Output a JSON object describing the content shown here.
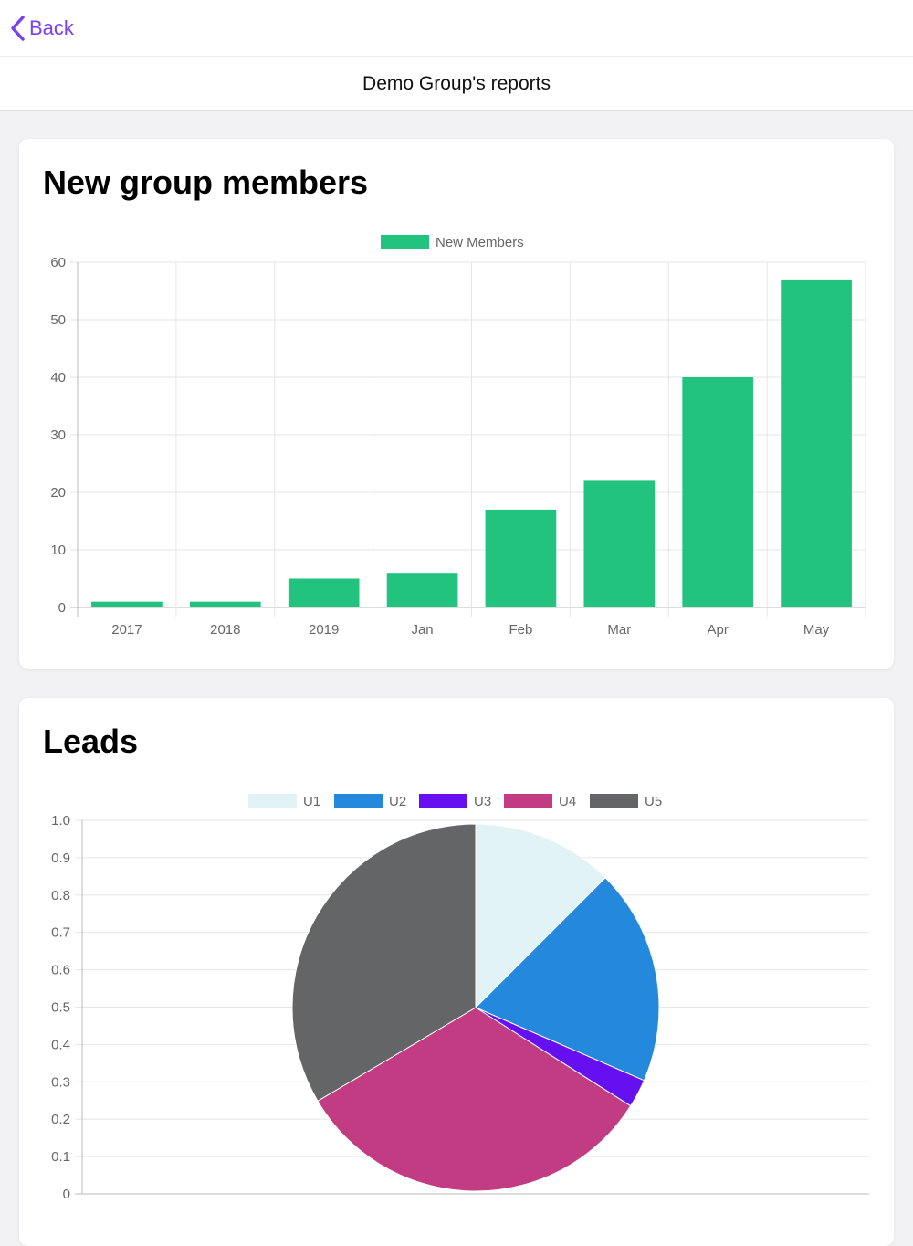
{
  "nav": {
    "back_label": "Back",
    "title": "Demo Group's reports"
  },
  "colors": {
    "accent": "#7b40f2",
    "bar": "#22c27f"
  },
  "cards": [
    {
      "title": "New group members"
    },
    {
      "title": "Leads"
    }
  ],
  "chart_data": [
    {
      "type": "bar",
      "title": "New group members",
      "categories": [
        "2017",
        "2018",
        "2019",
        "Jan",
        "Feb",
        "Mar",
        "Apr",
        "May"
      ],
      "series": [
        {
          "name": "New Members",
          "values": [
            1,
            1,
            5,
            6,
            17,
            22,
            40,
            57
          ],
          "color": "#22c27f"
        }
      ],
      "ylim": [
        0,
        60
      ],
      "yticks": [
        0,
        10,
        20,
        30,
        40,
        50,
        60
      ],
      "grid": true,
      "legend": "top-center"
    },
    {
      "type": "pie",
      "title": "Leads",
      "labels": [
        "U1",
        "U2",
        "U3",
        "U4",
        "U5"
      ],
      "values": [
        12.5,
        19,
        2.5,
        32.5,
        33.5
      ],
      "colors": [
        "#e1f3f5",
        "#2489dd",
        "#6610f2",
        "#c13c82",
        "#646567"
      ],
      "ylim": [
        0,
        1
      ],
      "yticks": [
        "0",
        "0.1",
        "0.2",
        "0.3",
        "0.4",
        "0.5",
        "0.6",
        "0.7",
        "0.8",
        "0.9",
        "1.0"
      ],
      "grid": true,
      "legend": "top-center"
    }
  ]
}
